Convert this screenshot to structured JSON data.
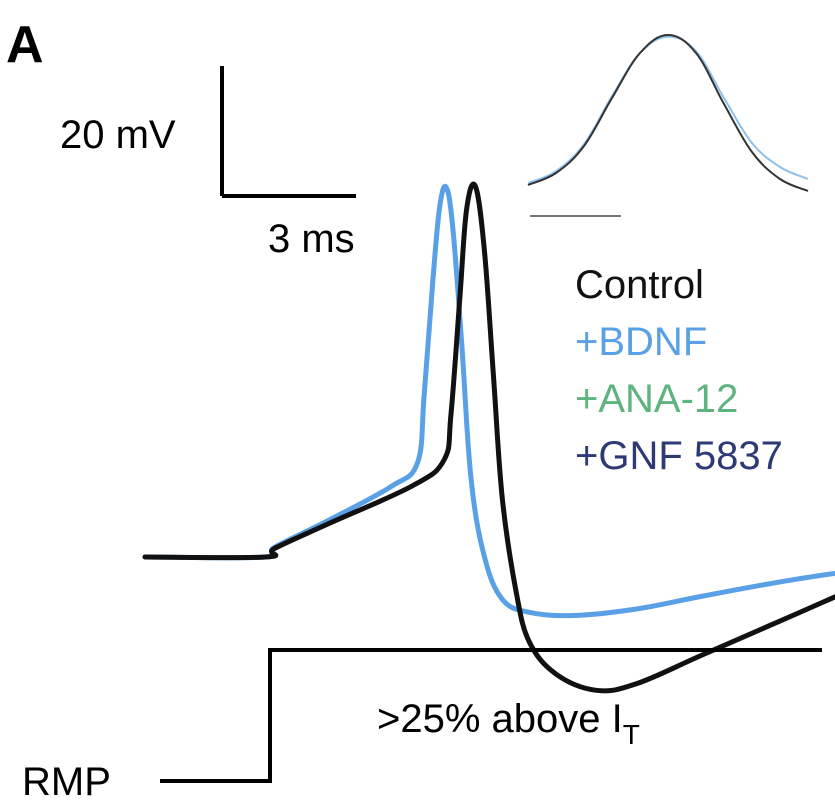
{
  "figure": {
    "panel_label": "A",
    "scale_bar": {
      "voltage_label": "20 mV",
      "time_label": "3 ms"
    },
    "legend": [
      {
        "label": "Control",
        "color": "#111111"
      },
      {
        "label": "+BDNF",
        "color": "#5aa0e6"
      },
      {
        "label": "+ANA-12",
        "color": "#5fb37e"
      },
      {
        "label": "+GNF 5837",
        "color": "#2e3a75"
      }
    ],
    "stimulus": {
      "label_main": ">25% above I",
      "label_sub": "T",
      "baseline_label": "RMP"
    }
  },
  "chart_data": {
    "type": "line",
    "title": "",
    "xlabel": "",
    "ylabel": "",
    "x_unit": "ms",
    "y_unit": "mV",
    "series": [
      {
        "name": "Control",
        "color": "#111111",
        "x": [
          0,
          2.7,
          2.9,
          4.1,
          6.0,
          6.7,
          6.85,
          7.05,
          7.2,
          7.4,
          7.6,
          7.8,
          8.0,
          8.3,
          8.6,
          9.2,
          10.1,
          11.0,
          12.5,
          14.5,
          16.5,
          18.0
        ],
        "y": [
          0,
          0,
          1.3,
          5.1,
          11.0,
          15.0,
          22.0,
          40.0,
          53.5,
          57.0,
          47.0,
          28.0,
          9.0,
          -5.0,
          -13.0,
          -18.0,
          -20.5,
          -19.5,
          -15.0,
          -9.0,
          -3.0,
          1.0
        ]
      },
      {
        "name": "+BDNF",
        "color": "#5aa0e6",
        "x": [
          0,
          2.7,
          2.9,
          4.1,
          5.5,
          6.1,
          6.25,
          6.45,
          6.6,
          6.75,
          6.9,
          7.1,
          7.3,
          7.6,
          8.0,
          8.6,
          9.6,
          11.0,
          12.5,
          14.5,
          16.5,
          18.0
        ],
        "y": [
          0,
          0,
          1.5,
          5.6,
          10.8,
          14.5,
          25.0,
          43.0,
          54.0,
          56.8,
          50.0,
          32.0,
          12.0,
          0.0,
          -6.5,
          -8.5,
          -9.0,
          -8.0,
          -6.0,
          -3.5,
          -1.5,
          0.0
        ]
      }
    ],
    "inset": {
      "type": "line",
      "note": "expanded view of spike onset/peak",
      "series": [
        {
          "name": "Control",
          "x": [
            0,
            1,
            2,
            3,
            4,
            5,
            6,
            7,
            8,
            9,
            10
          ],
          "y": [
            2.5,
            4.5,
            9,
            17,
            24.5,
            27.5,
            24.5,
            16,
            8,
            3.5,
            1.5
          ]
        },
        {
          "name": "+BDNF",
          "x": [
            0,
            1,
            2,
            3,
            4,
            5,
            6,
            7,
            8,
            9,
            10
          ],
          "y": [
            2.8,
            4.8,
            9.3,
            17.3,
            24.5,
            27.2,
            24.8,
            17,
            9.5,
            5.5,
            3.5
          ]
        }
      ]
    }
  }
}
